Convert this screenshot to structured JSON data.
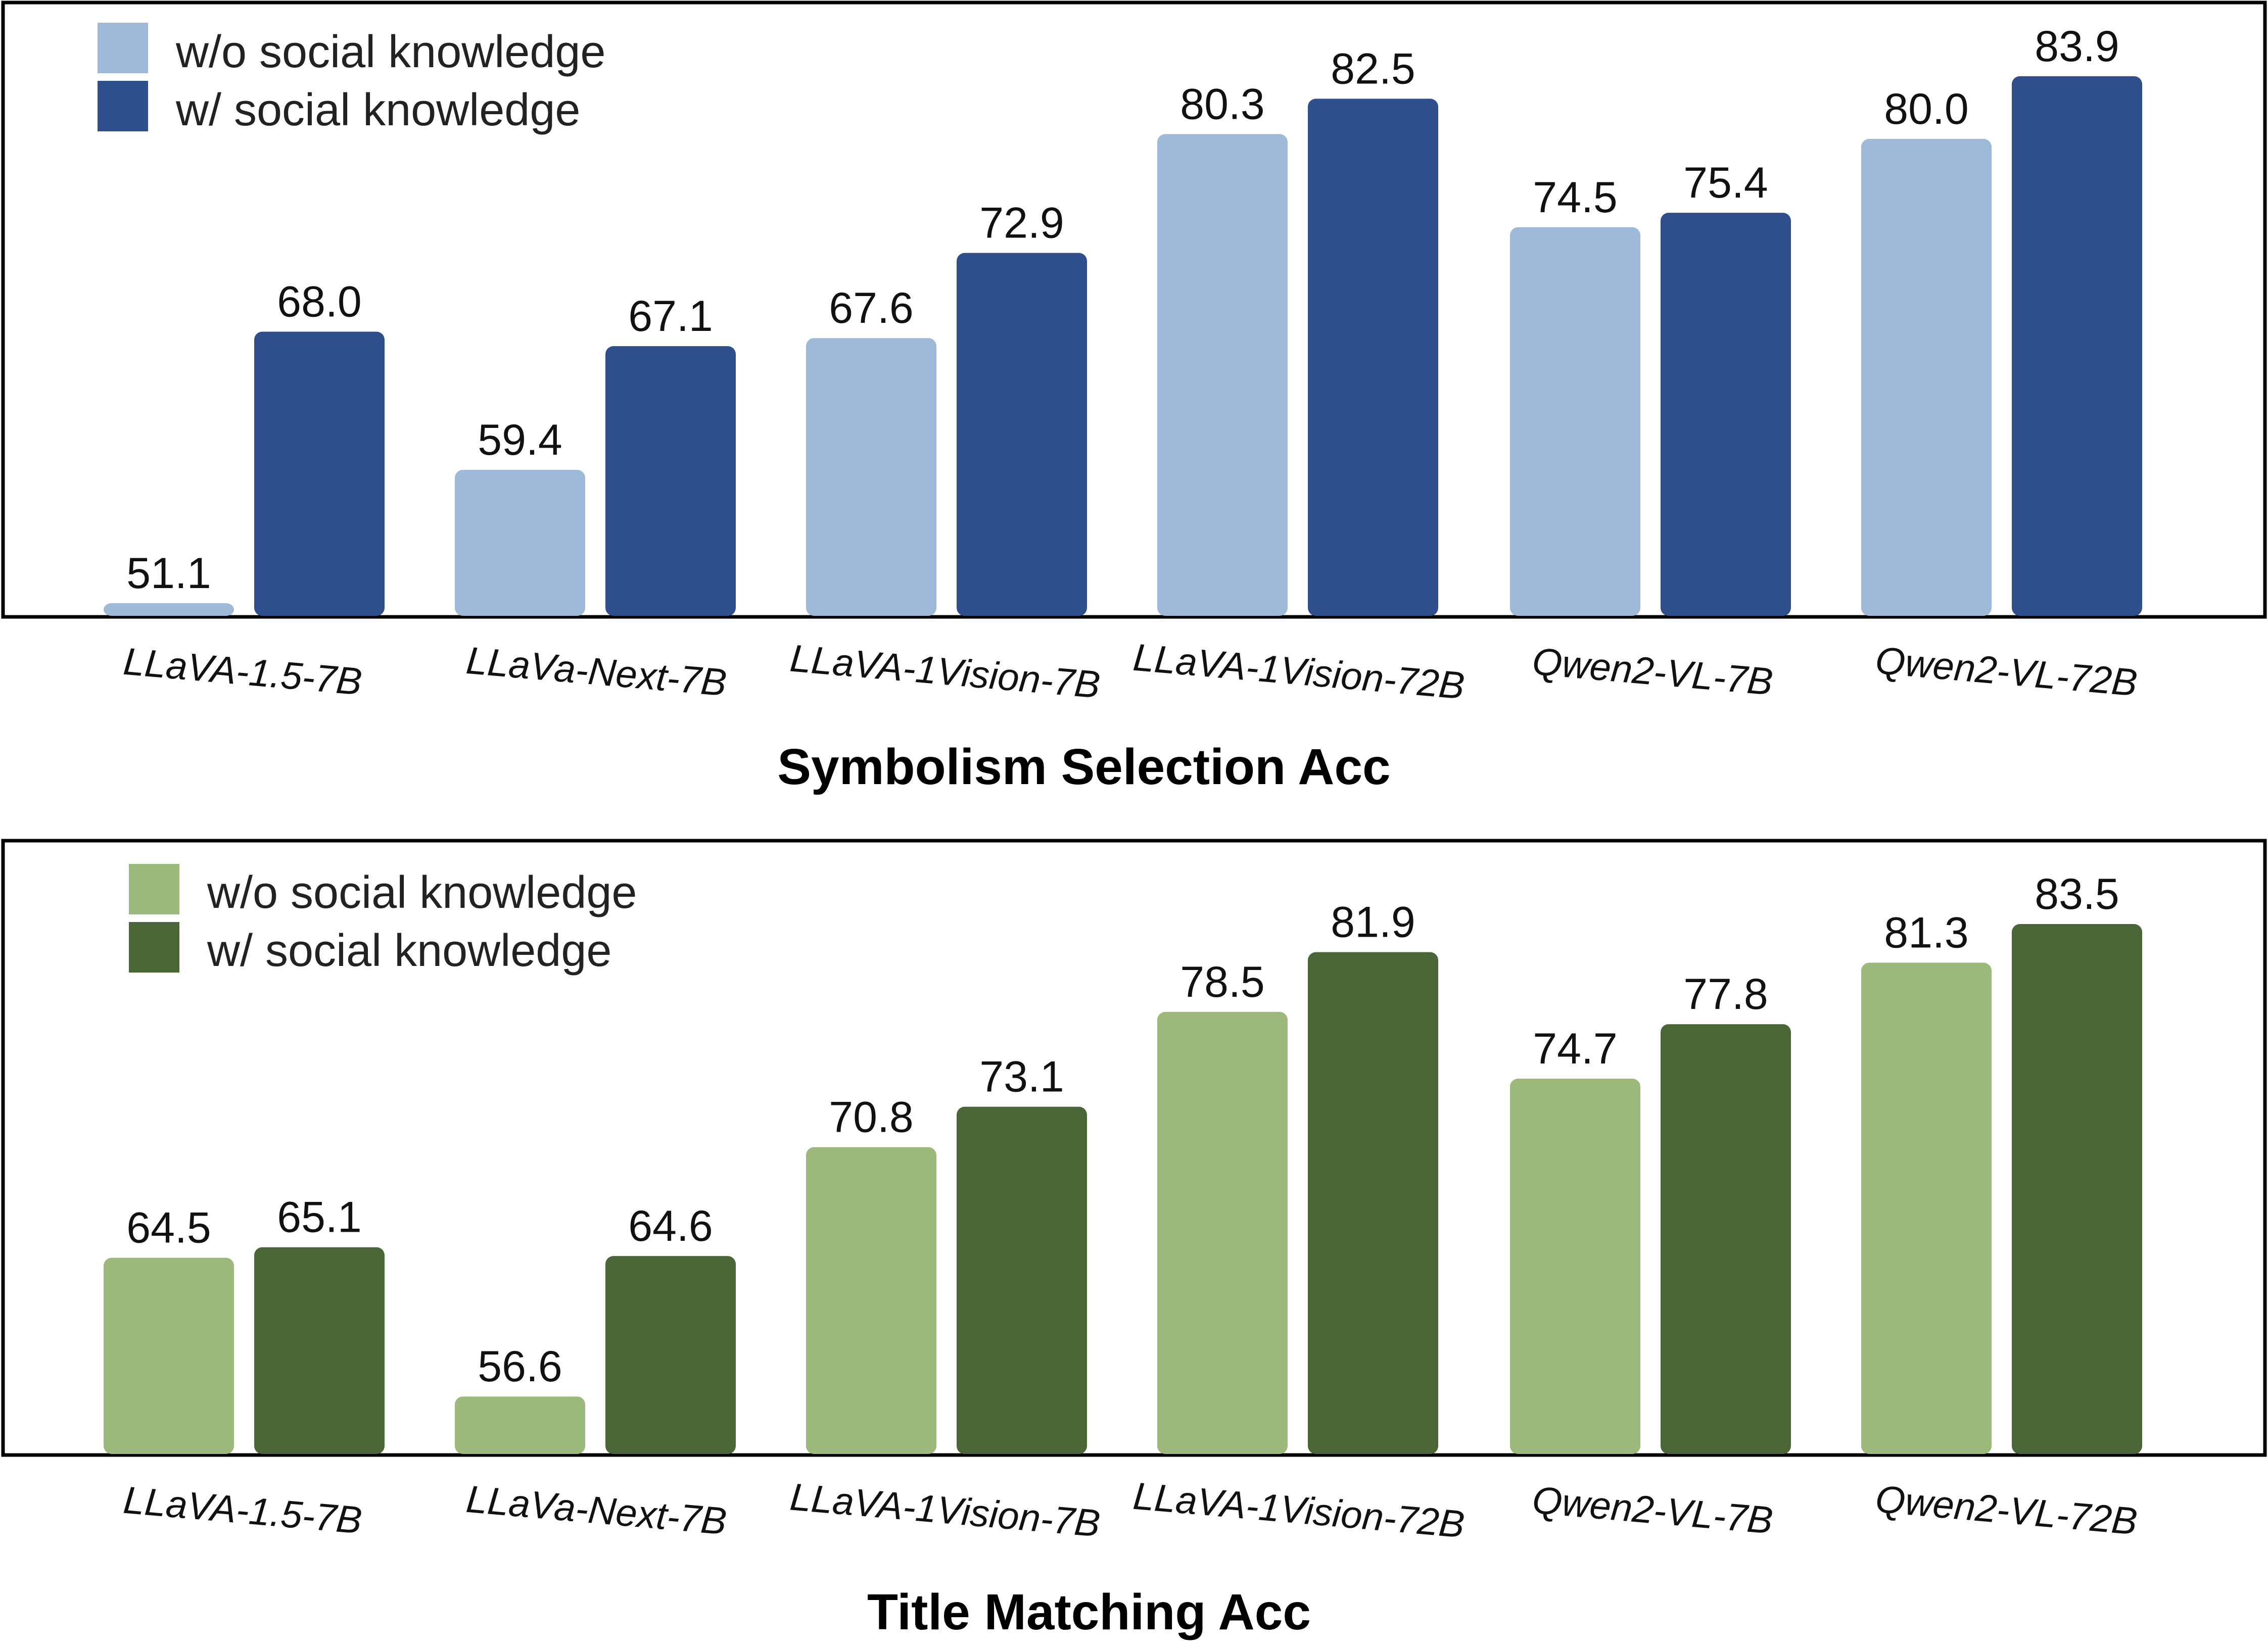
{
  "chart_data": [
    {
      "type": "bar",
      "title": "Symbolism Selection Acc",
      "categories": [
        "LLaVA-1.5-7B",
        "LLaVa-Next-7B",
        "LLaVA-1Vision-7B",
        "LLaVA-1Vision-72B",
        "Qwen2-VL-7B",
        "Qwen2-VL-72B"
      ],
      "series": [
        {
          "name": "w/o social knowledge",
          "color": "#9fb9d8",
          "values": [
            51.1,
            59.4,
            67.6,
            80.3,
            74.5,
            80.0
          ],
          "labels": [
            "51.1",
            "59.4",
            "67.6",
            "80.3",
            "74.5",
            "80.0"
          ]
        },
        {
          "name": "w/ social knowledge",
          "color": "#2f4f8c",
          "values": [
            68.0,
            67.1,
            72.9,
            82.5,
            75.4,
            83.9
          ],
          "labels": [
            "68.0",
            "67.1",
            "72.9",
            "82.5",
            "75.4",
            "83.9"
          ]
        }
      ],
      "ylim": [
        50.5,
        87.7
      ],
      "legend": "top-left",
      "grid": false
    },
    {
      "type": "bar",
      "title": "Title Matching Acc",
      "categories": [
        "LLaVA-1.5-7B",
        "LLaVa-Next-7B",
        "LLaVA-1Vision-7B",
        "LLaVA-1Vision-72B",
        "Qwen2-VL-7B",
        "Qwen2-VL-72B"
      ],
      "series": [
        {
          "name": "w/o social knowledge",
          "color": "#9cb87a",
          "values": [
            64.5,
            56.6,
            70.8,
            78.5,
            74.7,
            81.3
          ],
          "labels": [
            "64.5",
            "56.6",
            "70.8",
            "78.5",
            "74.7",
            "81.3"
          ]
        },
        {
          "name": "w/ social knowledge",
          "color": "#4a6536",
          "values": [
            65.1,
            64.6,
            73.1,
            81.9,
            77.8,
            83.5
          ],
          "labels": [
            "65.1",
            "64.6",
            "73.1",
            "81.9",
            "77.8",
            "83.5"
          ]
        }
      ],
      "ylim": [
        53.5,
        87.5
      ],
      "legend": "top-left",
      "grid": false
    }
  ]
}
